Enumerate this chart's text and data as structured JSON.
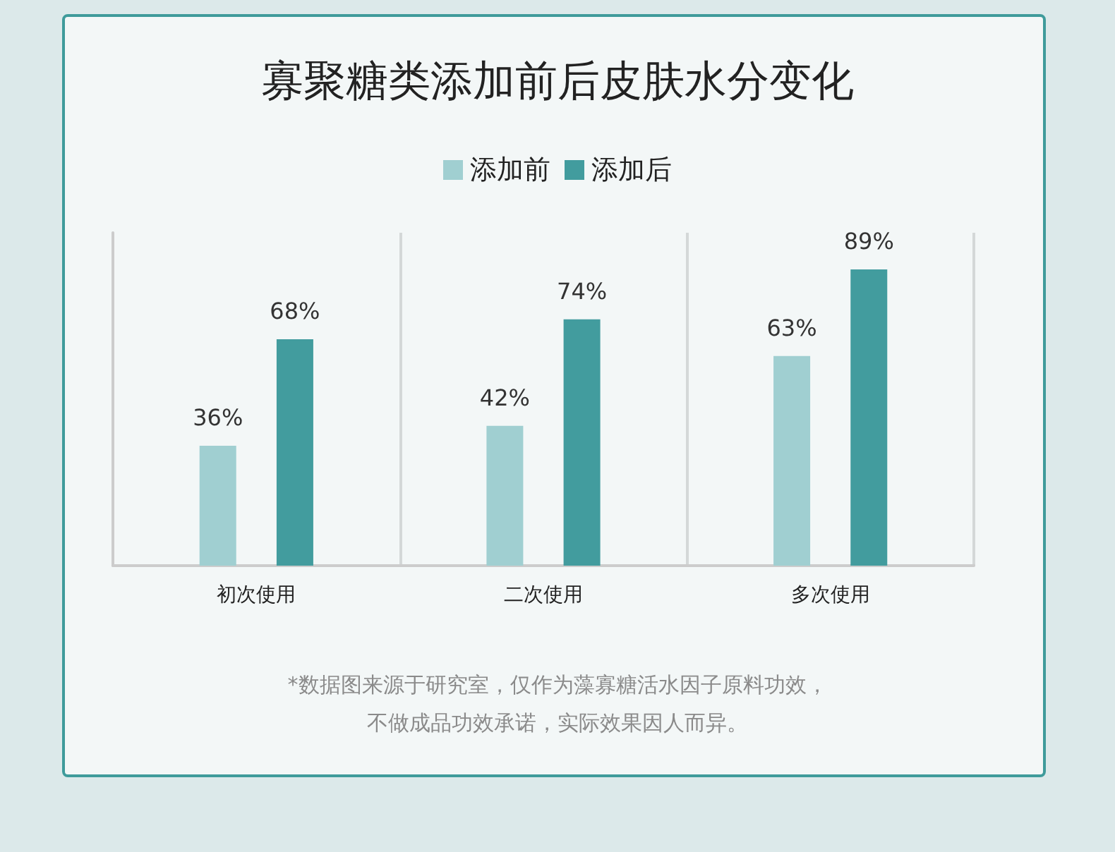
{
  "chart_data": {
    "type": "bar",
    "title": "寡聚糖类添加前后皮肤水分变化",
    "categories": [
      "初次使用",
      "二次使用",
      "多次使用"
    ],
    "series": [
      {
        "name": "添加前",
        "color": "#a0cfd1",
        "values": [
          36,
          42,
          63
        ],
        "value_labels": [
          "36%",
          "42%",
          "63%"
        ]
      },
      {
        "name": "添加后",
        "color": "#429c9e",
        "values": [
          68,
          74,
          89
        ],
        "value_labels": [
          "68%",
          "74%",
          "89%"
        ]
      }
    ],
    "legend": "top",
    "grid": "x",
    "annotations": [
      "*数据图来源于研究室，仅作为藻寡糖活水因子原料功效，",
      "不做成品功效承诺，实际效果因人而异。"
    ]
  }
}
